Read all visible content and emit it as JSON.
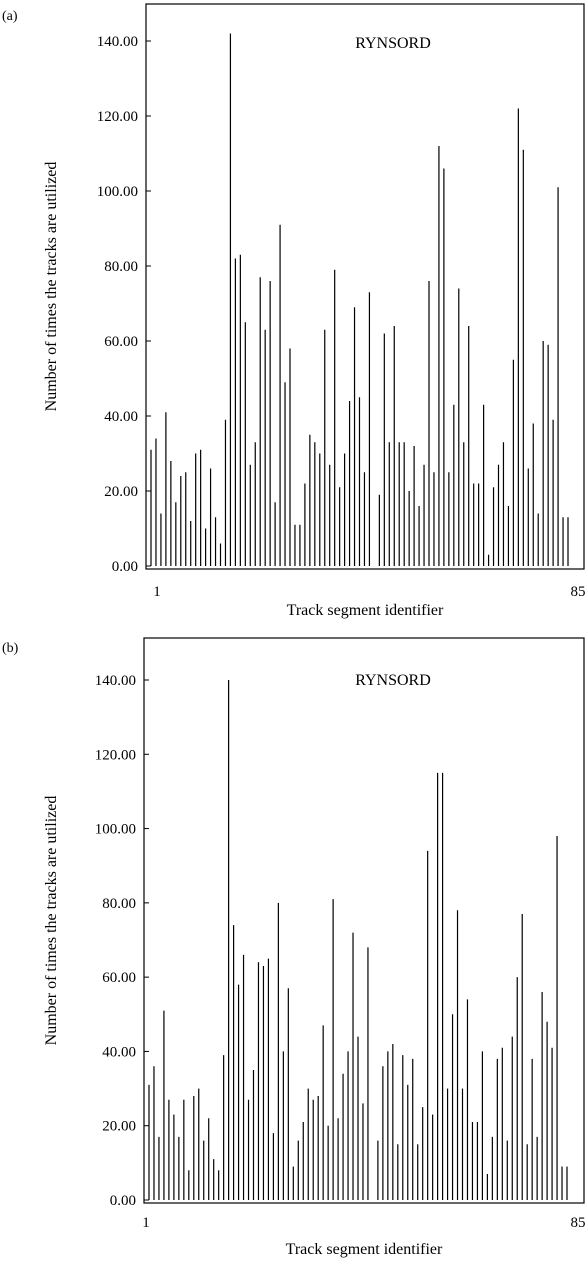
{
  "chart_data": [
    {
      "type": "bar",
      "panel_label": "(a)",
      "title": "RYNSORD",
      "xlabel": "Track segment identifier",
      "ylabel": "Number of times the tracks are utilized",
      "ylim": [
        0,
        150
      ],
      "yticks": [
        "0.00",
        "20.00",
        "40.00",
        "60.00",
        "80.00",
        "100.00",
        "120.00",
        "140.00"
      ],
      "xticks": [
        "1",
        "85"
      ],
      "grid": false,
      "legend": "none",
      "color": "#000000",
      "series": [
        {
          "values": [
            31,
            34,
            14,
            41,
            28,
            17,
            24,
            25,
            12,
            30,
            31,
            10,
            26,
            13,
            6,
            39,
            142,
            82,
            83,
            65,
            27,
            33,
            77,
            63,
            76,
            17,
            91,
            49,
            58,
            11,
            11,
            22,
            35,
            33,
            30,
            63,
            27,
            79,
            21,
            30,
            44,
            69,
            45,
            25,
            73,
            0,
            19,
            62,
            33,
            64,
            33,
            33,
            20,
            32,
            16,
            27,
            76,
            25,
            112,
            106,
            25,
            43,
            74,
            33,
            64,
            22,
            22,
            43,
            3,
            21,
            27,
            33,
            16,
            55,
            122,
            111,
            26,
            38,
            14,
            60,
            59,
            39,
            101,
            13,
            13
          ]
        }
      ]
    },
    {
      "type": "bar",
      "panel_label": "(b)",
      "title": "RYNSORD",
      "xlabel": "Track segment identifier",
      "ylabel": "Number of times the tracks are utilized",
      "ylim": [
        0,
        150
      ],
      "yticks": [
        "0.00",
        "20.00",
        "40.00",
        "60.00",
        "80.00",
        "100.00",
        "120.00",
        "140.00"
      ],
      "xticks": [
        "1",
        "85"
      ],
      "grid": false,
      "legend": "none",
      "color": "#000000",
      "series": [
        {
          "values": [
            31,
            36,
            17,
            51,
            27,
            23,
            17,
            27,
            8,
            28,
            30,
            16,
            22,
            11,
            8,
            39,
            140,
            74,
            58,
            66,
            27,
            35,
            64,
            63,
            65,
            18,
            80,
            40,
            57,
            9,
            16,
            21,
            30,
            27,
            28,
            47,
            20,
            81,
            22,
            34,
            40,
            72,
            44,
            26,
            68,
            0,
            16,
            36,
            40,
            42,
            15,
            39,
            31,
            38,
            15,
            25,
            94,
            23,
            115,
            115,
            30,
            50,
            78,
            30,
            54,
            21,
            21,
            40,
            7,
            17,
            38,
            41,
            16,
            44,
            60,
            77,
            15,
            38,
            17,
            56,
            48,
            41,
            98,
            9,
            9
          ]
        }
      ]
    }
  ]
}
